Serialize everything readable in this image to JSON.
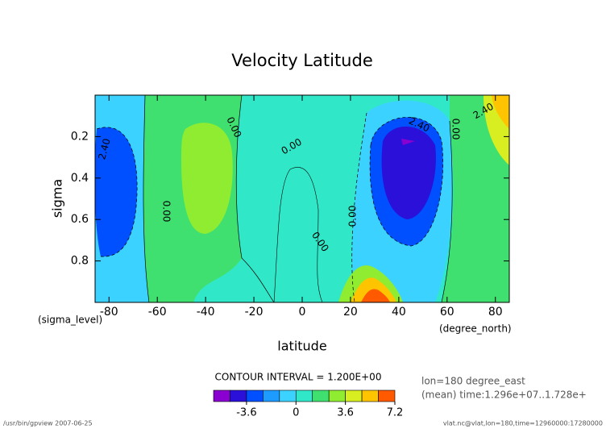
{
  "chart_data": {
    "type": "contour",
    "title": "Velocity Latitude",
    "xlabel": "latitude",
    "ylabel": "sigma",
    "x_units": "(degree_north)",
    "y_units": "(sigma_level)",
    "xlim": [
      -85.76,
      85.76
    ],
    "xticks": [
      -80,
      -60,
      -40,
      -20,
      0,
      20,
      40,
      60,
      80
    ],
    "ylim": [
      1.0,
      0.0
    ],
    "yticks": [
      0.2,
      0.4,
      0.6,
      0.8
    ],
    "contour_labels": [
      "2.40",
      "0.00",
      "0.00",
      "0.00",
      "0.00",
      "0.00",
      "2.40",
      "0.00",
      "2.40"
    ],
    "contour_interval": "CONTOUR INTERVAL = 1.200E+00",
    "colorbar": {
      "bins": [
        -6.0,
        -4.8,
        -3.6,
        -2.4,
        -1.2,
        0,
        1.2,
        2.4,
        3.6,
        4.8,
        6.0,
        7.2
      ],
      "colors": [
        "#8a00d0",
        "#2a10d8",
        "#0050ff",
        "#1e9bff",
        "#3cd2ff",
        "#30e8c8",
        "#40e070",
        "#90ec30",
        "#d8ee20",
        "#ffc400",
        "#ff5a00"
      ],
      "ticks": [
        -3.6,
        0,
        3.6,
        7.2
      ]
    },
    "info": [
      "lon=180 degree_east",
      "(mean) time:1.296e+07..1.728e+"
    ],
    "footer_left": "/usr/bin/gpview  2007-06-25",
    "footer_right": "vlat.nc@vlat,lon=180,time=12960000:17280000"
  }
}
